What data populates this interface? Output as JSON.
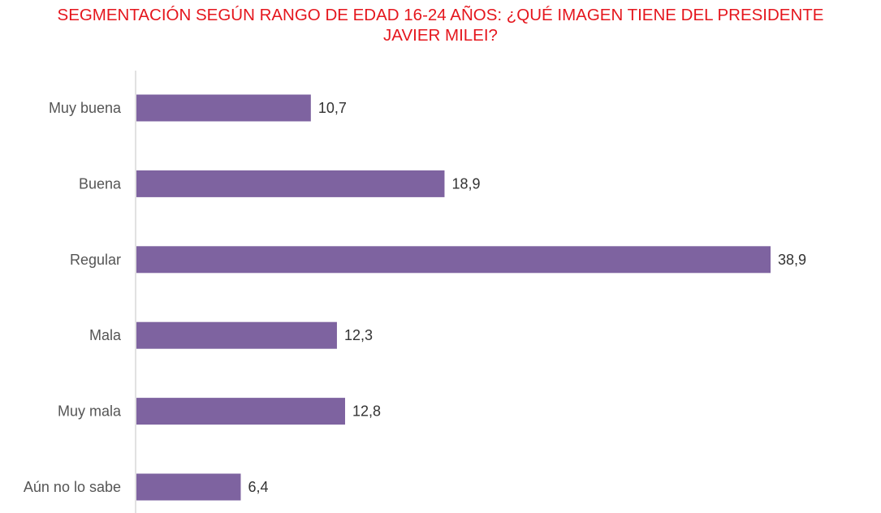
{
  "chart_data": {
    "type": "bar",
    "orientation": "horizontal",
    "title_lines": [
      "SEGMENTACIÓN SEGÚN RANGO DE EDAD 16-24 AÑOS: ¿QUÉ IMAGEN TIENE DEL PRESIDENTE",
      "JAVIER MILEI?"
    ],
    "categories": [
      "Muy buena",
      "Buena",
      "Regular",
      "Mala",
      "Muy mala",
      "Aún no lo sabe"
    ],
    "values": [
      10.7,
      18.9,
      38.9,
      12.3,
      12.8,
      6.4
    ],
    "value_labels": [
      "10,7",
      "18,9",
      "38,9",
      "12,3",
      "12,8",
      "6,4"
    ],
    "xlim": [
      0,
      38.9
    ],
    "grid": false,
    "colors": {
      "bar": "#7e63a0",
      "title": "#e5161d",
      "axis": "#d9d9d9"
    }
  }
}
